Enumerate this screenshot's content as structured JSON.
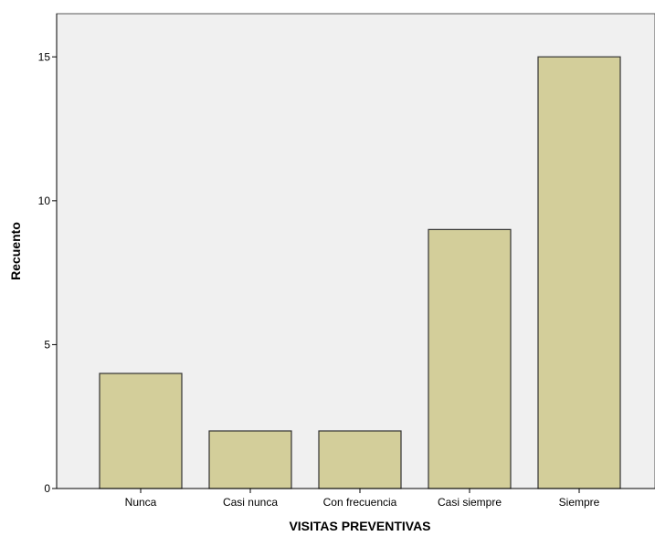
{
  "chart_data": {
    "type": "bar",
    "title": "",
    "xlabel": "VISITAS PREVENTIVAS",
    "ylabel": "Recuento",
    "categories": [
      "Nunca",
      "Casi nunca",
      "Con frecuencia",
      "Casi siempre",
      "Siempre"
    ],
    "values": [
      4,
      2,
      2,
      9,
      15
    ],
    "ylim": [
      0,
      16.5
    ],
    "yticks": [
      0,
      5,
      10,
      15
    ],
    "grid": false,
    "legend": "none",
    "colors": {
      "plot_background": "#f0f0f0",
      "bar_fill": "#d3ce9a",
      "bar_stroke": "#333333",
      "axis": "#000000"
    }
  }
}
